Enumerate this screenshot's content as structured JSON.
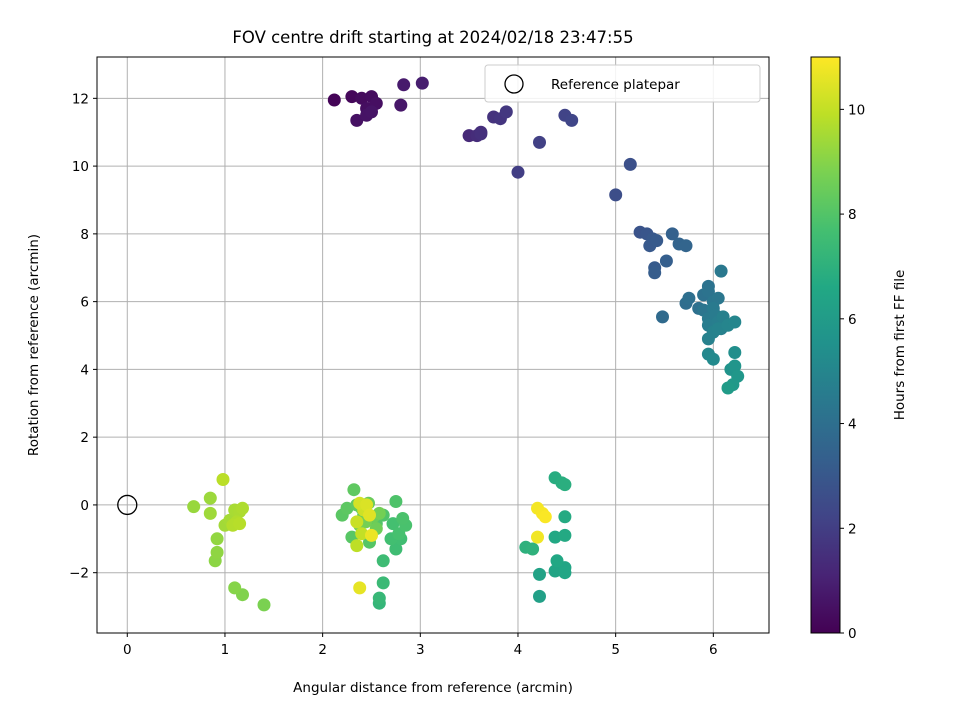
{
  "chart_data": {
    "type": "scatter",
    "title": "FOV centre drift starting at 2024/02/18 23:47:55",
    "xlabel": "Angular distance from reference (arcmin)",
    "ylabel": "Rotation from reference (arcmin)",
    "xlim": [
      -0.31,
      6.57
    ],
    "ylim": [
      -3.78,
      13.22
    ],
    "xticks": [
      "0",
      "1",
      "2",
      "3",
      "4",
      "5",
      "6"
    ],
    "yticks": [
      "−2",
      "0",
      "2",
      "4",
      "6",
      "8",
      "10",
      "12"
    ],
    "grid": true,
    "legend": {
      "placement": "top-right",
      "entries": [
        "Reference platepar"
      ]
    },
    "colorbar": {
      "label": "Hours from first FF file",
      "range": [
        0,
        11
      ],
      "ticks": [
        "0",
        "2",
        "4",
        "6",
        "8",
        "10"
      ],
      "colormap": "viridis"
    },
    "reference_point": {
      "x": 0,
      "y": 0
    },
    "series": [
      {
        "values": [
          [
            2.12,
            11.95,
            0.1
          ],
          [
            2.3,
            12.05,
            0.2
          ],
          [
            2.4,
            12.0,
            0.3
          ],
          [
            2.5,
            12.05,
            0.35
          ],
          [
            2.45,
            11.7,
            0.4
          ],
          [
            2.55,
            11.85,
            0.45
          ],
          [
            2.35,
            11.35,
            0.5
          ],
          [
            2.45,
            11.5,
            0.55
          ],
          [
            2.5,
            11.6,
            0.6
          ],
          [
            2.8,
            11.8,
            0.7
          ],
          [
            2.83,
            12.4,
            0.8
          ],
          [
            3.02,
            12.45,
            0.9
          ],
          [
            3.5,
            10.9,
            1.3
          ],
          [
            3.58,
            10.9,
            1.4
          ],
          [
            3.62,
            11.0,
            1.45
          ],
          [
            3.62,
            10.95,
            1.5
          ],
          [
            3.75,
            11.45,
            1.6
          ],
          [
            3.82,
            11.4,
            1.7
          ],
          [
            3.88,
            11.6,
            1.8
          ],
          [
            4.0,
            9.82,
            2.0
          ],
          [
            4.22,
            10.7,
            2.1
          ],
          [
            4.48,
            11.5,
            2.2
          ],
          [
            4.55,
            11.35,
            2.3
          ],
          [
            5.0,
            9.15,
            2.6
          ],
          [
            5.15,
            10.05,
            2.7
          ],
          [
            5.25,
            8.05,
            2.8
          ],
          [
            5.32,
            8.0,
            2.9
          ],
          [
            5.38,
            7.85,
            3.0
          ],
          [
            5.35,
            7.65,
            3.05
          ],
          [
            5.42,
            7.8,
            3.1
          ],
          [
            5.4,
            7.0,
            3.15
          ],
          [
            5.4,
            6.85,
            3.2
          ],
          [
            5.52,
            7.2,
            3.3
          ],
          [
            5.58,
            8.0,
            3.4
          ],
          [
            5.65,
            7.7,
            3.5
          ],
          [
            5.72,
            7.65,
            3.55
          ],
          [
            5.48,
            5.55,
            3.8
          ],
          [
            5.72,
            5.95,
            3.9
          ],
          [
            5.75,
            6.1,
            4.0
          ],
          [
            5.85,
            5.8,
            4.05
          ],
          [
            5.9,
            6.2,
            4.1
          ],
          [
            5.95,
            6.45,
            4.15
          ],
          [
            5.95,
            6.3,
            4.2
          ],
          [
            5.9,
            5.75,
            4.25
          ],
          [
            6.0,
            6.0,
            4.3
          ],
          [
            6.05,
            6.1,
            4.35
          ],
          [
            6.08,
            6.9,
            4.4
          ],
          [
            5.95,
            5.5,
            4.45
          ],
          [
            6.0,
            5.8,
            4.5
          ],
          [
            6.02,
            5.6,
            4.55
          ],
          [
            5.95,
            5.3,
            4.6
          ],
          [
            6.05,
            5.4,
            4.65
          ],
          [
            6.08,
            5.2,
            4.7
          ],
          [
            6.1,
            5.55,
            4.75
          ],
          [
            5.95,
            4.9,
            4.8
          ],
          [
            6.0,
            5.1,
            4.85
          ],
          [
            6.05,
            5.2,
            4.9
          ],
          [
            6.15,
            5.3,
            4.95
          ],
          [
            6.22,
            5.4,
            5.0
          ],
          [
            5.95,
            4.45,
            5.1
          ],
          [
            6.0,
            4.3,
            5.2
          ],
          [
            6.22,
            4.5,
            5.4
          ],
          [
            6.18,
            4.0,
            5.6
          ],
          [
            6.22,
            4.1,
            5.7
          ],
          [
            6.25,
            3.8,
            5.8
          ],
          [
            6.2,
            3.55,
            5.9
          ],
          [
            6.15,
            3.45,
            6.0
          ],
          [
            4.22,
            -2.7,
            6.2
          ],
          [
            4.22,
            -2.05,
            6.3
          ],
          [
            4.38,
            -1.95,
            6.4
          ],
          [
            4.48,
            -1.85,
            6.45
          ],
          [
            4.48,
            -2.0,
            6.5
          ],
          [
            4.4,
            -1.65,
            6.55
          ],
          [
            4.38,
            -0.95,
            6.6
          ],
          [
            4.48,
            -0.9,
            6.65
          ],
          [
            4.48,
            -0.35,
            6.7
          ],
          [
            4.38,
            0.8,
            6.8
          ],
          [
            4.45,
            0.65,
            6.85
          ],
          [
            4.48,
            0.6,
            6.9
          ],
          [
            4.08,
            -1.25,
            7.0
          ],
          [
            4.15,
            -1.3,
            7.05
          ],
          [
            2.58,
            -2.9,
            7.2
          ],
          [
            2.58,
            -2.75,
            7.3
          ],
          [
            2.62,
            -2.3,
            7.4
          ],
          [
            2.62,
            -1.65,
            7.5
          ],
          [
            2.75,
            -1.3,
            7.55
          ],
          [
            2.8,
            -1.0,
            7.6
          ],
          [
            2.7,
            -1.0,
            7.65
          ],
          [
            2.72,
            -0.55,
            7.7
          ],
          [
            2.78,
            -0.85,
            7.75
          ],
          [
            2.85,
            -0.6,
            7.8
          ],
          [
            2.82,
            -0.4,
            7.85
          ],
          [
            2.75,
            0.1,
            7.9
          ],
          [
            2.62,
            -0.3,
            7.95
          ],
          [
            2.55,
            -0.55,
            8.0
          ],
          [
            2.48,
            -1.1,
            8.05
          ],
          [
            2.3,
            -0.95,
            8.1
          ],
          [
            2.2,
            -0.3,
            8.15
          ],
          [
            2.25,
            -0.1,
            8.2
          ],
          [
            2.32,
            0.45,
            8.25
          ],
          [
            2.35,
            0.0,
            8.3
          ],
          [
            2.4,
            -0.1,
            8.35
          ],
          [
            2.42,
            -0.3,
            8.4
          ],
          [
            2.47,
            0.05,
            8.45
          ],
          [
            2.52,
            -0.35,
            8.5
          ],
          [
            2.55,
            -0.7,
            8.55
          ],
          [
            2.38,
            -0.6,
            8.6
          ],
          [
            2.58,
            -0.25,
            8.65
          ],
          [
            2.44,
            -0.5,
            8.7
          ],
          [
            1.4,
            -2.95,
            8.8
          ],
          [
            1.18,
            -2.65,
            8.9
          ],
          [
            1.1,
            -2.45,
            9.0
          ],
          [
            0.9,
            -1.65,
            9.1
          ],
          [
            0.92,
            -1.4,
            9.15
          ],
          [
            0.92,
            -1.0,
            9.2
          ],
          [
            0.68,
            -0.05,
            9.3
          ],
          [
            0.85,
            0.2,
            9.35
          ],
          [
            0.85,
            -0.25,
            9.4
          ],
          [
            1.0,
            -0.6,
            9.45
          ],
          [
            1.05,
            -0.45,
            9.5
          ],
          [
            1.1,
            -0.15,
            9.55
          ],
          [
            1.15,
            -0.2,
            9.6
          ],
          [
            1.18,
            -0.1,
            9.65
          ],
          [
            1.12,
            -0.5,
            9.7
          ],
          [
            1.08,
            -0.6,
            9.75
          ],
          [
            1.15,
            -0.55,
            9.8
          ],
          [
            0.98,
            0.75,
            9.85
          ],
          [
            2.35,
            -1.2,
            9.9
          ],
          [
            2.4,
            -0.85,
            10.0
          ],
          [
            2.35,
            -0.5,
            10.1
          ],
          [
            2.42,
            -0.15,
            10.2
          ],
          [
            2.38,
            0.05,
            10.3
          ],
          [
            2.45,
            0.0,
            10.4
          ],
          [
            2.48,
            -0.3,
            10.5
          ],
          [
            2.38,
            -2.45,
            10.6
          ],
          [
            2.5,
            -0.9,
            10.7
          ],
          [
            4.2,
            -0.95,
            10.8
          ],
          [
            4.2,
            -0.1,
            10.85
          ],
          [
            4.25,
            -0.25,
            10.9
          ],
          [
            4.28,
            -0.35,
            10.95
          ]
        ]
      }
    ]
  }
}
